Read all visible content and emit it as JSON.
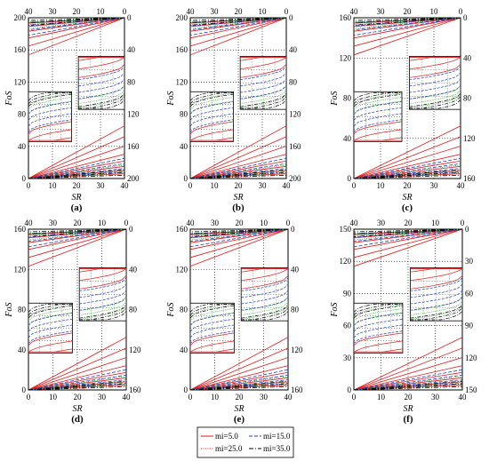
{
  "chart_data": [
    {
      "type": "line",
      "panel_label": "(a)",
      "xlabel": "SR",
      "ylabel": "FoS",
      "bottom_x_ticks": [
        "0",
        "10",
        "20",
        "30",
        "40"
      ],
      "top_x_ticks": [
        "40",
        "30",
        "20",
        "10",
        "0"
      ],
      "left_y_ticks": [
        "0",
        "40",
        "80",
        "120",
        "160",
        "200"
      ],
      "right_y_ticks": [
        "0",
        "40",
        "80",
        "120",
        "160",
        "200"
      ],
      "xlim": [
        0,
        40
      ],
      "ylim": [
        0,
        200
      ],
      "grid": "dotted",
      "series": [
        {
          "name": "mi=5.0",
          "values_at_x": {
            "x": [
              0,
              10,
              20,
              30,
              40
            ],
            "y": [
              [
                0,
                8,
                15,
                22,
                28
              ],
              [
                0,
                5,
                10,
                14,
                18
              ],
              [
                0,
                3,
                6,
                8,
                10
              ]
            ]
          }
        },
        {
          "name": "mi=15.0",
          "values_at_x": {
            "x": [
              0,
              10,
              20,
              30,
              40
            ],
            "y": [
              [
                0,
                5,
                10,
                16,
                22
              ],
              [
                0,
                3,
                6,
                9,
                12
              ]
            ]
          }
        },
        {
          "name": "mi=25.0",
          "values_at_x": {
            "x": [
              0,
              10,
              20,
              30,
              40
            ],
            "y": [
              [
                0,
                3,
                6,
                9,
                12
              ]
            ]
          }
        },
        {
          "name": "mi=35.0",
          "values_at_x": {
            "x": [
              0,
              10,
              20,
              30,
              40
            ],
            "y": [
              [
                0,
                2,
                4,
                6,
                8
              ]
            ]
          }
        }
      ]
    },
    {
      "type": "line",
      "panel_label": "(b)",
      "xlabel": "SR",
      "ylabel": "FoS",
      "bottom_x_ticks": [
        "0",
        "10",
        "20",
        "30",
        "40"
      ],
      "top_x_ticks": [
        "40",
        "30",
        "20",
        "10",
        "0"
      ],
      "left_y_ticks": [
        "0",
        "40",
        "80",
        "120",
        "160",
        "200"
      ],
      "right_y_ticks": [
        "0",
        "40",
        "80",
        "120",
        "160",
        "200"
      ],
      "xlim": [
        0,
        40
      ],
      "ylim": [
        0,
        200
      ],
      "grid": "dotted"
    },
    {
      "type": "line",
      "panel_label": "(c)",
      "xlabel": "SR",
      "ylabel": "FoS",
      "bottom_x_ticks": [
        "0",
        "10",
        "20",
        "30",
        "40"
      ],
      "top_x_ticks": [
        "40",
        "30",
        "20",
        "10",
        "0"
      ],
      "left_y_ticks": [
        "0",
        "40",
        "80",
        "120",
        "160"
      ],
      "right_y_ticks": [
        "0",
        "40",
        "80",
        "120",
        "160"
      ],
      "xlim": [
        0,
        40
      ],
      "ylim": [
        0,
        160
      ],
      "grid": "dotted"
    },
    {
      "type": "line",
      "panel_label": "(d)",
      "xlabel": "SR",
      "ylabel": "FoS",
      "bottom_x_ticks": [
        "0",
        "10",
        "20",
        "30",
        "40"
      ],
      "top_x_ticks": [
        "40",
        "30",
        "20",
        "10",
        "0"
      ],
      "left_y_ticks": [
        "0",
        "40",
        "80",
        "120",
        "160"
      ],
      "right_y_ticks": [
        "0",
        "40",
        "80",
        "120",
        "160"
      ],
      "xlim": [
        0,
        40
      ],
      "ylim": [
        0,
        160
      ],
      "grid": "dotted"
    },
    {
      "type": "line",
      "panel_label": "(e)",
      "xlabel": "SR",
      "ylabel": "FoS",
      "bottom_x_ticks": [
        "0",
        "10",
        "20",
        "30",
        "40"
      ],
      "top_x_ticks": [
        "40",
        "30",
        "20",
        "10",
        "0"
      ],
      "left_y_ticks": [
        "0",
        "40",
        "80",
        "120",
        "160"
      ],
      "right_y_ticks": [
        "0",
        "40",
        "80",
        "120",
        "160"
      ],
      "xlim": [
        0,
        40
      ],
      "ylim": [
        0,
        160
      ],
      "grid": "dotted"
    },
    {
      "type": "line",
      "panel_label": "(f)",
      "xlabel": "SR",
      "ylabel": "FoS",
      "bottom_x_ticks": [
        "0",
        "10",
        "20",
        "30",
        "40"
      ],
      "top_x_ticks": [
        "40",
        "30",
        "20",
        "10",
        "0"
      ],
      "left_y_ticks": [
        "0",
        "30",
        "60",
        "90",
        "120",
        "150"
      ],
      "right_y_ticks": [
        "0",
        "30",
        "60",
        "90",
        "120",
        "150"
      ],
      "xlim": [
        0,
        40
      ],
      "ylim": [
        0,
        150
      ],
      "grid": "dotted"
    }
  ],
  "legend": {
    "placement": "bottom-center",
    "entries": [
      {
        "label": "mi=5.0",
        "color": "#e31a1c",
        "dash": "solid"
      },
      {
        "label": "mi=15.0",
        "color": "#1f3fbf",
        "dash": "dashed"
      },
      {
        "label": "mi=25.0",
        "color": "#e31a1c",
        "dash": "dotted"
      },
      {
        "label": "mi=35.0",
        "color": "#000000",
        "dash": "dashdot"
      }
    ]
  },
  "colors": {
    "red": "#e31a1c",
    "blue": "#1f3fbf",
    "green": "#2ca02c",
    "black": "#000000"
  }
}
